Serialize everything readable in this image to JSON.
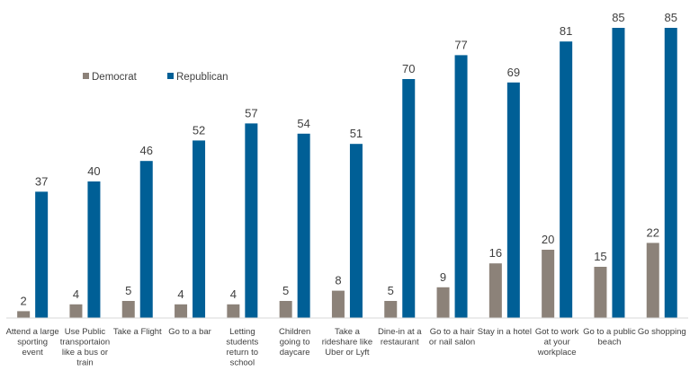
{
  "chart_data": {
    "type": "bar",
    "title": "",
    "xlabel": "",
    "ylabel": "",
    "ylim": [
      0,
      85
    ],
    "grid": false,
    "legend_position": "top-left",
    "categories": [
      [
        "Attend a large",
        "sporting",
        "event"
      ],
      [
        "Use Public",
        "transportaion",
        "like a bus or",
        "train"
      ],
      [
        "Take a Flight"
      ],
      [
        "Go to a bar"
      ],
      [
        "Letting",
        "students",
        "return to",
        "school"
      ],
      [
        "Children",
        "going to",
        "daycare"
      ],
      [
        "Take a",
        "rideshare like",
        "Uber or Lyft"
      ],
      [
        "Dine-in at a",
        "restaurant"
      ],
      [
        "Go to a hair",
        "or nail salon"
      ],
      [
        "Stay in a hotel"
      ],
      [
        "Got to work",
        "at your",
        "workplace"
      ],
      [
        "Go to a public",
        "beach"
      ],
      [
        "Go shopping"
      ]
    ],
    "series": [
      {
        "name": "Democrat",
        "color": "#8C8279",
        "values": [
          2,
          4,
          5,
          4,
          4,
          5,
          8,
          5,
          9,
          16,
          20,
          15,
          22
        ]
      },
      {
        "name": "Republican",
        "color": "#005F96",
        "values": [
          37,
          40,
          46,
          52,
          57,
          54,
          51,
          70,
          77,
          69,
          81,
          85,
          85
        ]
      }
    ]
  }
}
